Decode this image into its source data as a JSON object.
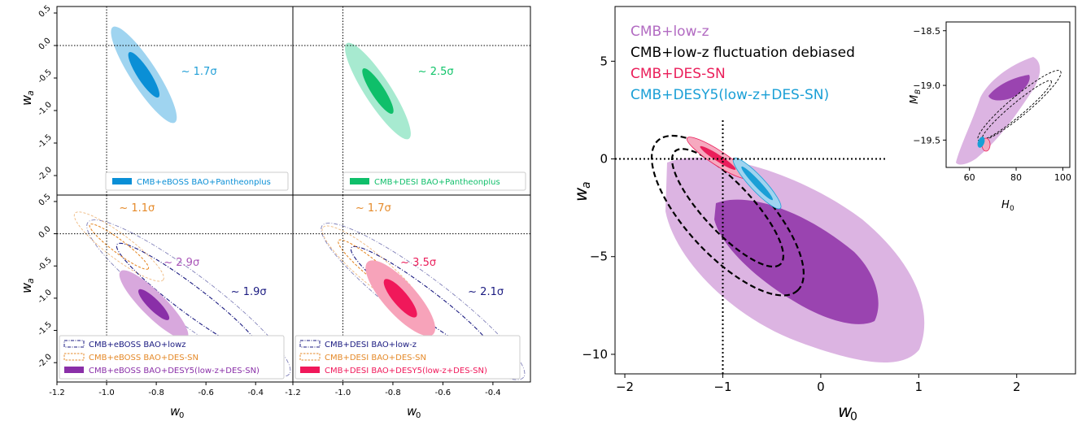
{
  "left_figure": {
    "xlabel": "w0",
    "ylabel": "wa",
    "xlim": [
      -1.2,
      -0.25
    ],
    "ylim": [
      -2.3,
      0.6
    ],
    "reference_lines": {
      "w0": -1.0,
      "wa": 0.0
    },
    "shared_xticks": [
      "-1.2",
      "-1.0",
      "-0.8",
      "-0.6",
      "-0.4"
    ],
    "shared_yticks": [
      "0.5",
      "0.0",
      "-0.5",
      "-1.0",
      "-1.5",
      "-2.0"
    ]
  },
  "chart_data": [
    {
      "type": "contour",
      "panel": "top-left",
      "xlim": [
        -1.2,
        -0.25
      ],
      "ylim": [
        -2.3,
        0.6
      ],
      "legend": [
        "CMB+eBOSS BAO+Pantheonplus"
      ],
      "legend_position": "bottom-right",
      "annotations": [
        {
          "text": "~ 1.7σ",
          "x": -0.7,
          "y": -0.45,
          "color": "#1f9ed6"
        }
      ],
      "series": [
        {
          "name": "CMB+eBOSS BAO+Pantheonplus",
          "color": "#0a8fd6",
          "light": "#9fd4f0",
          "style": "filled",
          "center": [
            -0.85,
            -0.45
          ],
          "x_range_2sigma": [
            -0.98,
            -0.73
          ],
          "wa_range_2sigma": [
            0.1,
            -1.1
          ]
        }
      ]
    },
    {
      "type": "contour",
      "panel": "top-right",
      "xlim": [
        -1.2,
        -0.25
      ],
      "ylim": [
        -2.3,
        0.6
      ],
      "legend": [
        "CMB+DESI BAO+Pantheonplus"
      ],
      "legend_position": "bottom-right",
      "annotations": [
        {
          "text": "~ 2.5σ",
          "x": -0.7,
          "y": -0.45,
          "color": "#11c46a"
        }
      ],
      "series": [
        {
          "name": "CMB+DESI BAO+Pantheonplus",
          "color": "#0fbf6a",
          "light": "#a7ead0",
          "style": "filled",
          "center": [
            -0.86,
            -0.7
          ],
          "x_range_2sigma": [
            -1.01,
            -0.72
          ],
          "wa_range_2sigma": [
            -0.15,
            -1.25
          ]
        }
      ]
    },
    {
      "type": "contour",
      "panel": "bottom-left",
      "xlim": [
        -1.2,
        -0.25
      ],
      "ylim": [
        -2.3,
        0.6
      ],
      "legend": [
        "CMB+eBOSS BAO+lowz",
        "CMB+eBOSS BAO+DES-SN",
        "CMB+eBOSS BAO+DESY5(low-z+DES-SN)"
      ],
      "legend_position": "bottom-left",
      "annotations": [
        {
          "text": "~ 1.1σ",
          "x": -0.95,
          "y": 0.35,
          "color": "#e58a2a"
        },
        {
          "text": "~ 2.9σ",
          "x": -0.77,
          "y": -0.5,
          "color": "#a955b8"
        },
        {
          "text": "~ 1.9σ",
          "x": -0.5,
          "y": -0.95,
          "color": "#1a1a80"
        }
      ],
      "series": [
        {
          "name": "CMB+eBOSS BAO+lowz",
          "color": "#1a1a80",
          "style": "dashdot",
          "center": [
            -0.67,
            -1.0
          ]
        },
        {
          "name": "CMB+eBOSS BAO+DES-SN",
          "color": "#e58a2a",
          "style": "dashed",
          "center": [
            -0.95,
            -0.2
          ]
        },
        {
          "name": "CMB+eBOSS BAO+DESY5(low-z+DES-SN)",
          "color": "#8a2fa8",
          "light": "#d8a8dd",
          "style": "filled",
          "center": [
            -0.81,
            -1.1
          ]
        }
      ]
    },
    {
      "type": "contour",
      "panel": "bottom-right",
      "xlim": [
        -1.2,
        -0.25
      ],
      "ylim": [
        -2.3,
        0.6
      ],
      "legend": [
        "CMB+DESI BAO+low-z",
        "CMB+DESI BAO+DES-SN",
        "CMB+DESI BAO+DESY5(low-z+DES-SN)"
      ],
      "legend_position": "bottom-left",
      "annotations": [
        {
          "text": "~ 1.7σ",
          "x": -0.95,
          "y": 0.35,
          "color": "#e58a2a"
        },
        {
          "text": "~ 3.5σ",
          "x": -0.77,
          "y": -0.5,
          "color": "#ea1e5a"
        },
        {
          "text": "~ 2.1σ",
          "x": -0.5,
          "y": -0.95,
          "color": "#1a1a80"
        }
      ],
      "series": [
        {
          "name": "CMB+DESI BAO+low-z",
          "color": "#1a1a80",
          "style": "dashdot",
          "center": [
            -0.68,
            -1.05
          ]
        },
        {
          "name": "CMB+DESI BAO+DES-SN",
          "color": "#e58a2a",
          "style": "dashed",
          "center": [
            -0.88,
            -0.55
          ]
        },
        {
          "name": "CMB+DESI BAO+DESY5(low-z+DES-SN)",
          "color": "#f0185a",
          "light": "#f7a3ba",
          "style": "filled",
          "center": [
            -0.77,
            -1.0
          ]
        }
      ]
    },
    {
      "type": "contour",
      "panel": "right-main",
      "xlabel": "w0",
      "ylabel": "wa",
      "xlim": [
        -2.1,
        2.6
      ],
      "ylim": [
        -11.0,
        7.8
      ],
      "xticks": [
        "-2",
        "-1",
        "0",
        "1",
        "2"
      ],
      "yticks": [
        "5",
        "0",
        "-5",
        "-10"
      ],
      "reference_lines": {
        "w0": -1.0,
        "wa": 0.0
      },
      "legend": [
        "CMB+low-z",
        "CMB+low-z fluctuation debiased",
        "CMB+DES-SN",
        "CMB+DESY5(low-z+DES-SN)"
      ],
      "legend_colors": [
        "#b26bc2",
        "#000000",
        "#ea1e5a",
        "#1a9fd6"
      ],
      "legend_position": "top-left",
      "series": [
        {
          "name": "CMB+low-z",
          "color": "#9a44b0",
          "light": "#dcb4e2",
          "style": "filled",
          "center": [
            -0.3,
            -4.0
          ]
        },
        {
          "name": "CMB+low-z fluctuation debiased",
          "color": "#000000",
          "style": "dashed",
          "center": [
            -0.8,
            -3.0
          ]
        },
        {
          "name": "CMB+DES-SN",
          "color": "#ea1e5a",
          "light": "#f6a9bf",
          "style": "filled",
          "center": [
            -1.0,
            0.0
          ]
        },
        {
          "name": "CMB+DESY5(low-z+DES-SN)",
          "color": "#1a9fd6",
          "light": "#9fd4f0",
          "style": "filled",
          "center": [
            -0.65,
            -1.2
          ]
        }
      ]
    },
    {
      "type": "contour",
      "panel": "inset",
      "xlabel": "H0",
      "ylabel": "MB",
      "xlim": [
        50,
        103
      ],
      "ylim": [
        -19.75,
        -18.42
      ],
      "xticks": [
        "60",
        "80",
        "100"
      ],
      "yticks": [
        "-18.5",
        "-19.0",
        "-19.5"
      ],
      "series": [
        {
          "name": "CMB+low-z",
          "color": "#9a44b0",
          "light": "#dcb4e2",
          "style": "filled"
        },
        {
          "name": "CMB+low-z fluctuation debiased",
          "color": "#000000",
          "style": "dashed"
        },
        {
          "name": "CMB+DES-SN",
          "color": "#ea1e5a",
          "style": "filled"
        },
        {
          "name": "CMB+DESY5(low-z+DES-SN)",
          "color": "#1a9fd6",
          "style": "filled"
        }
      ]
    }
  ]
}
